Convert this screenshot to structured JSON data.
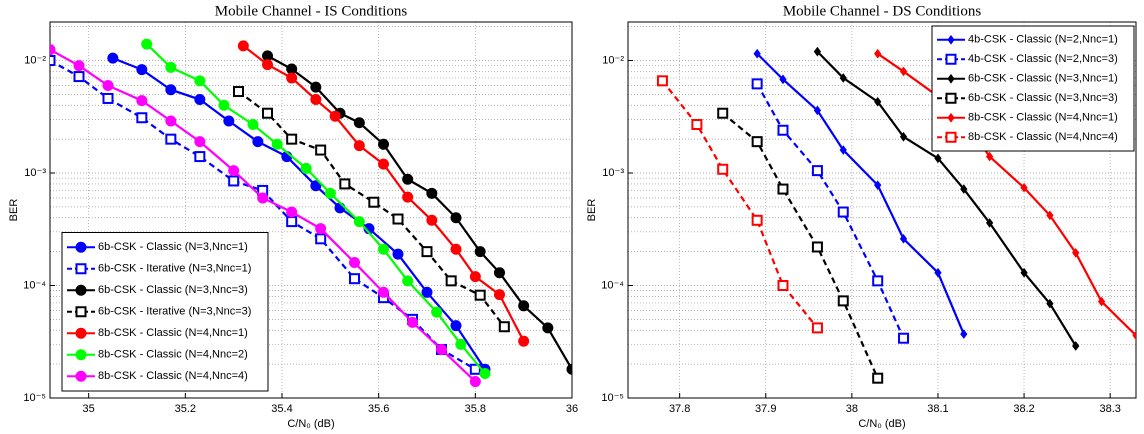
{
  "chart_data": [
    {
      "type": "line",
      "title": "Mobile Channel - IS Conditions",
      "xlabel": "C/N₀ (dB)",
      "ylabel": "BER",
      "xlim": [
        34.92,
        36
      ],
      "xticks": [
        35,
        35.2,
        35.4,
        35.6,
        35.8,
        36
      ],
      "ylim": [
        1e-05,
        0.022
      ],
      "log_y": true,
      "grid": true,
      "legend_loc": "lower left",
      "yticks": [
        {
          "value": 1e-05,
          "label": "10⁻⁵"
        },
        {
          "value": 0.0001,
          "label": "10⁻⁴"
        },
        {
          "value": 0.001,
          "label": "10⁻³"
        },
        {
          "value": 0.01,
          "label": "10⁻²"
        }
      ],
      "series": [
        {
          "name": "6b-CSK - Classic (N=3,Nnc=1)",
          "color": "#0000ff",
          "dash": false,
          "marker": "circle",
          "x": [
            35.05,
            35.11,
            35.17,
            35.23,
            35.29,
            35.35,
            35.41,
            35.47,
            35.52,
            35.58,
            35.64,
            35.7,
            35.76,
            35.82
          ],
          "values": [
            0.0105,
            0.0083,
            0.0055,
            0.0045,
            0.0029,
            0.0019,
            0.0014,
            0.00077,
            0.00049,
            0.00032,
            0.00019,
            8.7e-05,
            4.4e-05,
            1.8e-05
          ]
        },
        {
          "name": "6b-CSK - Iterative (N=3,Nnc=1)",
          "color": "#0000ff",
          "dash": true,
          "marker": "square",
          "x": [
            34.92,
            34.98,
            35.04,
            35.11,
            35.17,
            35.23,
            35.3,
            35.36,
            35.42,
            35.48,
            35.55,
            35.61,
            35.67,
            35.73,
            35.8
          ],
          "values": [
            0.01,
            0.0072,
            0.0046,
            0.0031,
            0.002,
            0.0014,
            0.00085,
            0.0007,
            0.00037,
            0.00026,
            0.000115,
            7.8e-05,
            5e-05,
            2.7e-05,
            1.8e-05
          ]
        },
        {
          "name": "6b-CSK - Classic (N=3,Nnc=3)",
          "color": "#000000",
          "dash": false,
          "marker": "circle",
          "x": [
            35.37,
            35.42,
            35.47,
            35.52,
            35.56,
            35.61,
            35.66,
            35.71,
            35.76,
            35.81,
            35.85,
            35.9,
            35.95,
            36.0
          ],
          "values": [
            0.011,
            0.0084,
            0.0058,
            0.0034,
            0.0028,
            0.0018,
            0.00088,
            0.00066,
            0.0004,
            0.0002,
            0.00013,
            6.6e-05,
            4.2e-05,
            1.8e-05
          ]
        },
        {
          "name": "6b-CSK - Iterative (N=3,Nnc=3)",
          "color": "#000000",
          "dash": true,
          "marker": "square",
          "x": [
            35.31,
            35.37,
            35.42,
            35.48,
            35.53,
            35.59,
            35.64,
            35.7,
            35.75,
            35.81,
            35.86
          ],
          "values": [
            0.0053,
            0.0034,
            0.002,
            0.0016,
            0.0008,
            0.00055,
            0.00039,
            0.0002,
            0.00011,
            8.2e-05,
            4.3e-05
          ]
        },
        {
          "name": "8b-CSK - Classic (N=4,Nnc=1)",
          "color": "#ff0000",
          "dash": false,
          "marker": "circle",
          "x": [
            35.32,
            35.37,
            35.42,
            35.47,
            35.51,
            35.56,
            35.61,
            35.66,
            35.71,
            35.76,
            35.8,
            35.85,
            35.9
          ],
          "values": [
            0.0135,
            0.0092,
            0.007,
            0.0045,
            0.0032,
            0.00175,
            0.0012,
            0.00061,
            0.00038,
            0.00021,
            0.00012,
            8.3e-05,
            3.2e-05
          ]
        },
        {
          "name": "8b-CSK - Classic (N=4,Nnc=2)",
          "color": "#00ff00",
          "dash": false,
          "marker": "circle",
          "x": [
            35.12,
            35.17,
            35.23,
            35.28,
            35.34,
            35.39,
            35.45,
            35.5,
            35.56,
            35.61,
            35.66,
            35.72,
            35.77,
            35.82
          ],
          "values": [
            0.014,
            0.0087,
            0.0066,
            0.004,
            0.0027,
            0.0018,
            0.0011,
            0.00066,
            0.00037,
            0.00021,
            0.00011,
            5.8e-05,
            3e-05,
            1.65e-05
          ]
        },
        {
          "name": "8b-CSK - Classic (N=4,Nnc=4)",
          "color": "#ff00ff",
          "dash": false,
          "marker": "circle",
          "x": [
            34.92,
            34.98,
            35.04,
            35.11,
            35.17,
            35.23,
            35.3,
            35.36,
            35.42,
            35.48,
            35.55,
            35.61,
            35.67,
            35.73,
            35.8
          ],
          "values": [
            0.0125,
            0.009,
            0.006,
            0.0044,
            0.0029,
            0.0019,
            0.00105,
            0.0006,
            0.00045,
            0.00032,
            0.00016,
            8.7e-05,
            4.7e-05,
            2.7e-05,
            1.4e-05
          ]
        }
      ]
    },
    {
      "type": "line",
      "title": "Mobile Channel - DS Conditions",
      "xlabel": "C/N₀ (dB)",
      "ylabel": "BER",
      "xlim": [
        37.74,
        38.33
      ],
      "xticks": [
        37.8,
        37.9,
        38,
        38.1,
        38.2,
        38.3
      ],
      "ylim": [
        1e-05,
        0.022
      ],
      "log_y": true,
      "grid": true,
      "legend_loc": "upper right",
      "yticks": [
        {
          "value": 1e-05,
          "label": "10⁻⁵"
        },
        {
          "value": 0.0001,
          "label": "10⁻⁴"
        },
        {
          "value": 0.001,
          "label": "10⁻³"
        },
        {
          "value": 0.01,
          "label": "10⁻²"
        }
      ],
      "series": [
        {
          "name": "4b-CSK - Classic (N=2,Nnc=1)",
          "color": "#0000ff",
          "dash": false,
          "marker": "diamond",
          "x": [
            37.89,
            37.92,
            37.96,
            37.99,
            38.03,
            38.06,
            38.1,
            38.13
          ],
          "values": [
            0.0115,
            0.0068,
            0.0036,
            0.0016,
            0.00078,
            0.00026,
            0.00013,
            3.7e-05
          ]
        },
        {
          "name": "4b-CSK - Classic (N=2,Nnc=3)",
          "color": "#0000ff",
          "dash": true,
          "marker": "square",
          "x": [
            37.89,
            37.92,
            37.96,
            37.99,
            38.03,
            38.06
          ],
          "values": [
            0.0062,
            0.0024,
            0.00105,
            0.00045,
            0.00011,
            3.4e-05
          ]
        },
        {
          "name": "6b-CSK - Classic (N=3,Nnc=1)",
          "color": "#000000",
          "dash": false,
          "marker": "diamond",
          "x": [
            37.96,
            37.99,
            38.03,
            38.06,
            38.1,
            38.13,
            38.16,
            38.2,
            38.23,
            38.26
          ],
          "values": [
            0.012,
            0.007,
            0.0043,
            0.0021,
            0.00135,
            0.00072,
            0.00036,
            0.00013,
            6.9e-05,
            2.9e-05
          ]
        },
        {
          "name": "6b-CSK - Classic (N=3,Nnc=3)",
          "color": "#000000",
          "dash": true,
          "marker": "square",
          "x": [
            37.85,
            37.89,
            37.92,
            37.96,
            37.99,
            38.03
          ],
          "values": [
            0.0034,
            0.0019,
            0.00072,
            0.00022,
            7.3e-05,
            1.5e-05
          ]
        },
        {
          "name": "8b-CSK - Classic (N=4,Nnc=1)",
          "color": "#ff0000",
          "dash": false,
          "marker": "diamond",
          "x": [
            38.03,
            38.06,
            38.1,
            38.13,
            38.16,
            38.2,
            38.23,
            38.26,
            38.29,
            38.33
          ],
          "values": [
            0.0115,
            0.008,
            0.0048,
            0.003,
            0.0014,
            0.00074,
            0.00042,
            0.000195,
            7.2e-05,
            3.6e-05
          ]
        },
        {
          "name": "8b-CSK - Classic (N=4,Nnc=4)",
          "color": "#ff0000",
          "dash": true,
          "marker": "square",
          "x": [
            37.78,
            37.82,
            37.85,
            37.89,
            37.92,
            37.96
          ],
          "values": [
            0.0066,
            0.0027,
            0.00108,
            0.00038,
            0.0001,
            4.2e-05
          ]
        }
      ]
    }
  ]
}
